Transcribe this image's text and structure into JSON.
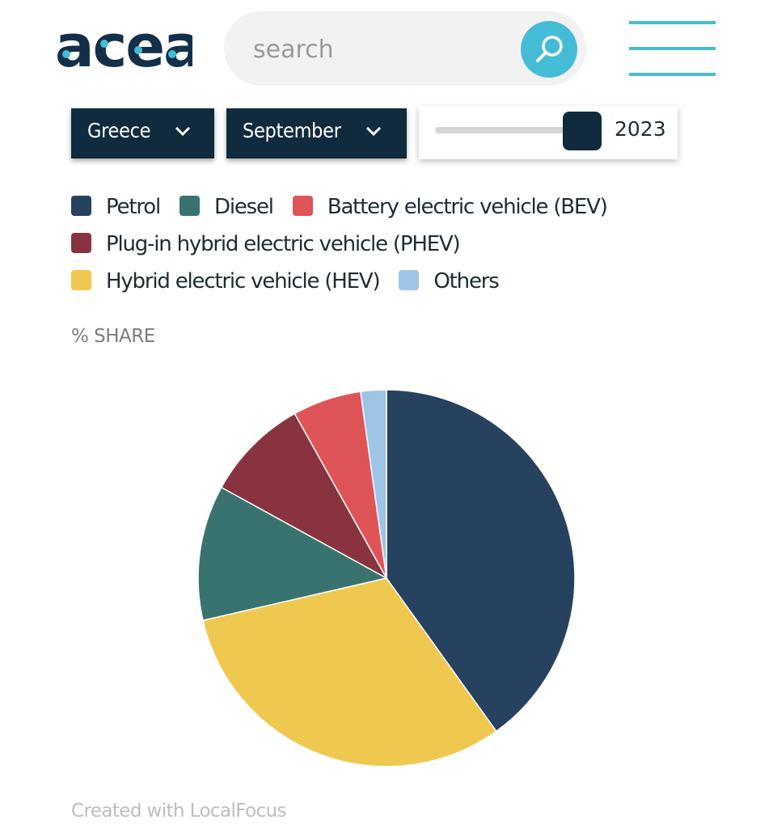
{
  "header": {
    "logo_text": "acea",
    "search": {
      "placeholder": "search"
    }
  },
  "filters": {
    "country": "Greece",
    "month": "September",
    "year": "2023"
  },
  "legend": [
    {
      "label": "Petrol",
      "color": "#27425e"
    },
    {
      "label": "Diesel",
      "color": "#397370"
    },
    {
      "label": "Battery electric vehicle (BEV)",
      "color": "#de5457"
    },
    {
      "label": "Plug-in hybrid electric vehicle (PHEV)",
      "color": "#8a3340"
    },
    {
      "label": "Hybrid electric vehicle (HEV)",
      "color": "#efc84f"
    },
    {
      "label": "Others",
      "color": "#9ec4e6"
    }
  ],
  "chart": {
    "ylabel": "% SHARE",
    "credit": "Created with LocalFocus"
  },
  "chart_data": {
    "type": "pie",
    "title": "",
    "unit": "% SHARE",
    "slices": [
      {
        "name": "Petrol",
        "value": 40.1,
        "color": "#27425e"
      },
      {
        "name": "Hybrid electric vehicle (HEV)",
        "value": 31.3,
        "color": "#efc84f"
      },
      {
        "name": "Diesel",
        "value": 11.6,
        "color": "#397370"
      },
      {
        "name": "Plug-in hybrid electric vehicle (PHEV)",
        "value": 8.9,
        "color": "#8a3340"
      },
      {
        "name": "Battery electric vehicle (BEV)",
        "value": 5.9,
        "color": "#de5457"
      },
      {
        "name": "Others",
        "value": 2.2,
        "color": "#9ec4e6"
      }
    ],
    "legend_placement": "top"
  }
}
